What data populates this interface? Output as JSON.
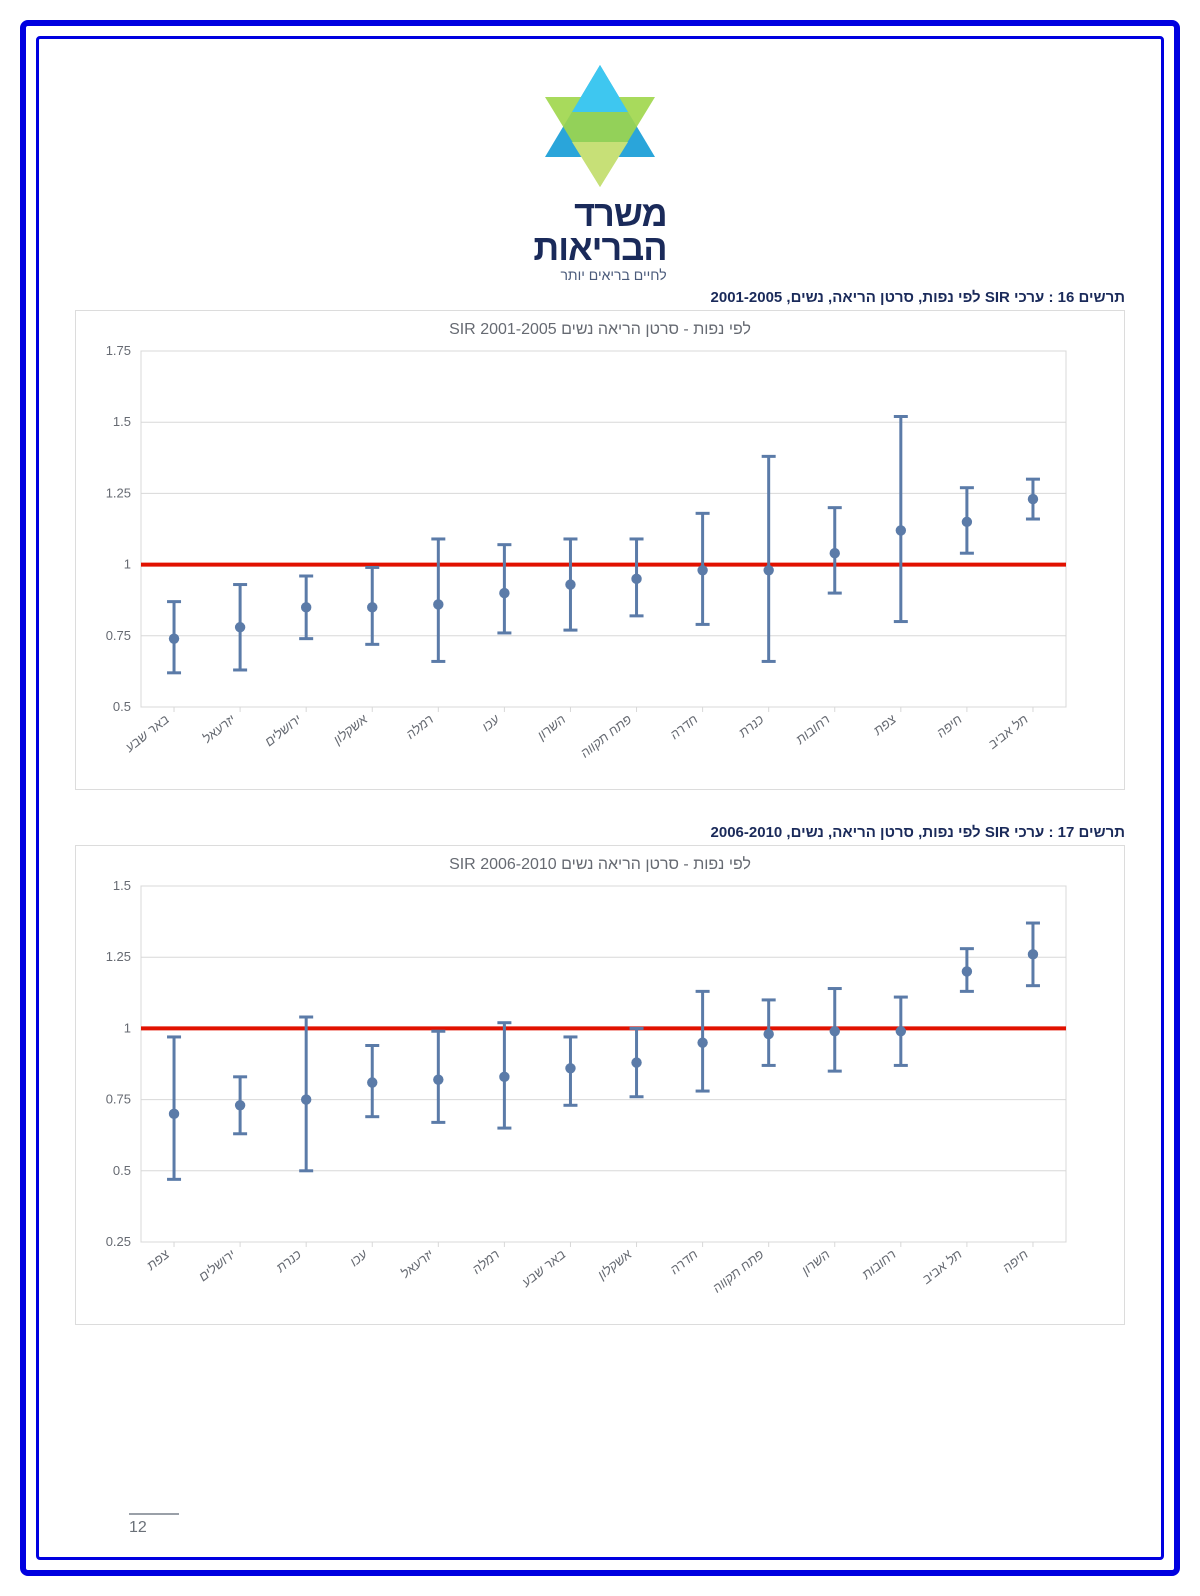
{
  "logo": {
    "line1": "משרד",
    "line2": "הבריאות",
    "tagline": "לחיים בריאים יותר",
    "star_colors": [
      "#1fa0d8",
      "#3ec7f0",
      "#9fd64a",
      "#c7e077"
    ]
  },
  "page_number": "12",
  "chart1": {
    "caption": "תרשים 16 : ערכי SIR לפי נפות, סרטן הריאה, נשים, 2001-2005",
    "title": "SIR לפי נפות - סרטן הריאה נשים 2001-2005",
    "type": "error-bar",
    "ylim": [
      0.5,
      1.75
    ],
    "yticks": [
      0.5,
      0.75,
      1,
      1.25,
      1.5,
      1.75
    ],
    "ytick_labels": [
      "0.5",
      "0.75",
      "1",
      "1.25",
      "1.5",
      "1.75"
    ],
    "reference_line": 1.0,
    "reference_color": "#e11100",
    "point_color": "#5b7ba8",
    "error_color": "#5b7ba8",
    "grid_color": "#d8d8d8",
    "text_color": "#666a72",
    "label_fontsize": 13,
    "tick_fontsize": 13,
    "categories": [
      "באר שבע",
      "יזרעאל",
      "ירושלים",
      "אשקלון",
      "רמלה",
      "עכו",
      "השרון",
      "פתח תקווה",
      "חדרה",
      "כנרת",
      "רחובות",
      "צפת",
      "חיפה",
      "תל אביב"
    ],
    "points": [
      {
        "y": 0.74,
        "lo": 0.62,
        "hi": 0.87
      },
      {
        "y": 0.78,
        "lo": 0.63,
        "hi": 0.93
      },
      {
        "y": 0.85,
        "lo": 0.74,
        "hi": 0.96
      },
      {
        "y": 0.85,
        "lo": 0.72,
        "hi": 0.99
      },
      {
        "y": 0.86,
        "lo": 0.66,
        "hi": 1.09
      },
      {
        "y": 0.9,
        "lo": 0.76,
        "hi": 1.07
      },
      {
        "y": 0.93,
        "lo": 0.77,
        "hi": 1.09
      },
      {
        "y": 0.95,
        "lo": 0.82,
        "hi": 1.09
      },
      {
        "y": 0.98,
        "lo": 0.79,
        "hi": 1.18
      },
      {
        "y": 0.98,
        "lo": 0.66,
        "hi": 1.38
      },
      {
        "y": 1.04,
        "lo": 0.9,
        "hi": 1.2
      },
      {
        "y": 1.12,
        "lo": 0.8,
        "hi": 1.52
      },
      {
        "y": 1.15,
        "lo": 1.04,
        "hi": 1.27
      },
      {
        "y": 1.23,
        "lo": 1.16,
        "hi": 1.3
      }
    ]
  },
  "chart2": {
    "caption": "תרשים 17 : ערכי SIR לפי נפות, סרטן הריאה, נשים, 2006-2010",
    "title": "SIR לפי נפות - סרטן הריאה נשים 2006-2010",
    "type": "error-bar",
    "ylim": [
      0.25,
      1.5
    ],
    "yticks": [
      0.25,
      0.5,
      0.75,
      1,
      1.25,
      1.5
    ],
    "ytick_labels": [
      "0.25",
      "0.5",
      "0.75",
      "1",
      "1.25",
      "1.5"
    ],
    "reference_line": 1.0,
    "reference_color": "#e11100",
    "point_color": "#5b7ba8",
    "error_color": "#5b7ba8",
    "grid_color": "#d8d8d8",
    "text_color": "#666a72",
    "label_fontsize": 13,
    "tick_fontsize": 13,
    "categories": [
      "צפת",
      "ירושלים",
      "כנרת",
      "עכו",
      "יזרעאל",
      "רמלה",
      "באר שבע",
      "אשקלון",
      "חדרה",
      "פתח תקווה",
      "השרון",
      "רחובות",
      "תל אביב",
      "חיפה"
    ],
    "points": [
      {
        "y": 0.7,
        "lo": 0.47,
        "hi": 0.97
      },
      {
        "y": 0.73,
        "lo": 0.63,
        "hi": 0.83
      },
      {
        "y": 0.75,
        "lo": 0.5,
        "hi": 1.04
      },
      {
        "y": 0.81,
        "lo": 0.69,
        "hi": 0.94
      },
      {
        "y": 0.82,
        "lo": 0.67,
        "hi": 0.99
      },
      {
        "y": 0.83,
        "lo": 0.65,
        "hi": 1.02
      },
      {
        "y": 0.86,
        "lo": 0.73,
        "hi": 0.97
      },
      {
        "y": 0.88,
        "lo": 0.76,
        "hi": 1.0
      },
      {
        "y": 0.95,
        "lo": 0.78,
        "hi": 1.13
      },
      {
        "y": 0.98,
        "lo": 0.87,
        "hi": 1.1
      },
      {
        "y": 0.99,
        "lo": 0.85,
        "hi": 1.14
      },
      {
        "y": 0.99,
        "lo": 0.87,
        "hi": 1.11
      },
      {
        "y": 1.2,
        "lo": 1.13,
        "hi": 1.28
      },
      {
        "y": 1.26,
        "lo": 1.15,
        "hi": 1.37
      }
    ]
  }
}
